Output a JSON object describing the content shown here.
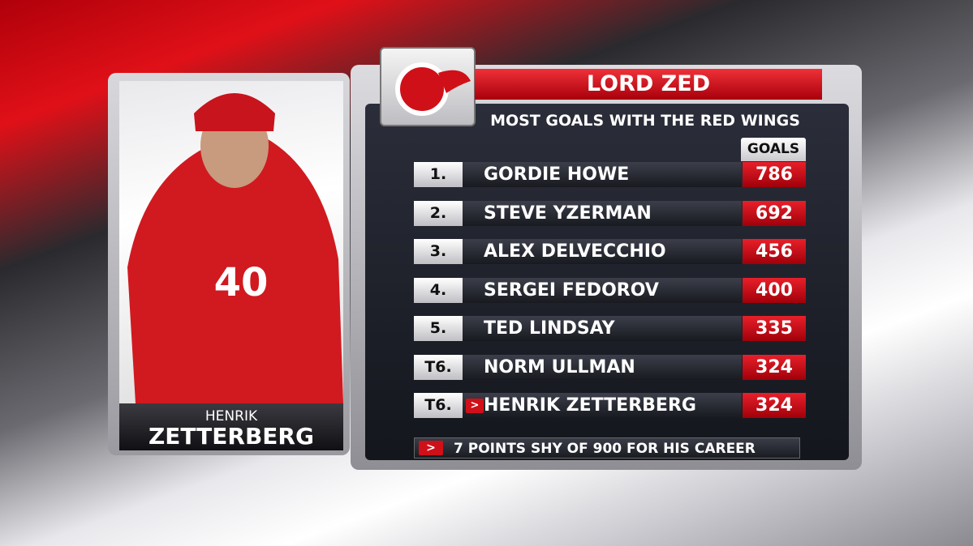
{
  "header": {
    "title": "LORD ZED",
    "subtitle": "MOST GOALS WITH THE RED WINGS"
  },
  "player": {
    "first_name": "HENRIK",
    "last_name": "ZETTERBERG"
  },
  "table": {
    "column": "GOALS",
    "rows": [
      {
        "rank": "1.",
        "name": "GORDIE HOWE",
        "goals": 786
      },
      {
        "rank": "2.",
        "name": "STEVE YZERMAN",
        "goals": 692
      },
      {
        "rank": "3.",
        "name": "ALEX DELVECCHIO",
        "goals": 456
      },
      {
        "rank": "4.",
        "name": "SERGEI FEDOROV",
        "goals": 400
      },
      {
        "rank": "5.",
        "name": "TED LINDSAY",
        "goals": 335
      },
      {
        "rank": "T6.",
        "name": "NORM ULLMAN",
        "goals": 324
      },
      {
        "rank": "T6.",
        "name": "HENRIK ZETTERBERG",
        "goals": 324
      }
    ]
  },
  "note": "7 POINTS SHY OF 900 FOR HIS CAREER"
}
